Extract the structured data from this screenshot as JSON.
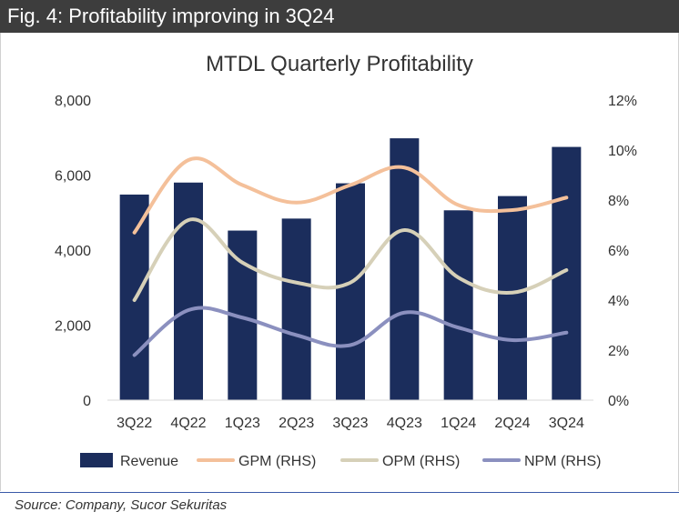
{
  "header": {
    "title": "Fig. 4: Profitability improving in 3Q24"
  },
  "source": "Source: Company, Sucor Sekuritas",
  "colors": {
    "revenue": "#1b2d5c",
    "gpm": "#f4c09a",
    "opm": "#d6d0b8",
    "npm": "#8b90bf",
    "header_bg": "#3d3d3d",
    "text": "#333333"
  },
  "chart_data": {
    "type": "bar",
    "title": "MTDL Quarterly Profitability",
    "categories": [
      "3Q22",
      "4Q22",
      "1Q23",
      "2Q23",
      "3Q23",
      "4Q23",
      "1Q24",
      "2Q24",
      "3Q24"
    ],
    "y_left": {
      "ticks": [
        "0",
        "2,000",
        "4,000",
        "6,000",
        "8,000"
      ],
      "ylim": [
        0,
        8000
      ]
    },
    "y_right": {
      "ticks": [
        "0%",
        "2%",
        "4%",
        "6%",
        "8%",
        "10%",
        "12%"
      ],
      "ylim": [
        0,
        12
      ]
    },
    "series": [
      {
        "name": "Revenue",
        "type": "bar",
        "axis": "left",
        "values": [
          5480,
          5800,
          4520,
          4840,
          5780,
          6980,
          5060,
          5440,
          6750
        ]
      },
      {
        "name": "GPM (RHS)",
        "type": "line",
        "axis": "right",
        "values": [
          6.7,
          9.6,
          8.6,
          7.9,
          8.6,
          9.3,
          7.8,
          7.6,
          8.1
        ]
      },
      {
        "name": "OPM (RHS)",
        "type": "line",
        "axis": "right",
        "values": [
          4.0,
          7.2,
          5.5,
          4.7,
          4.7,
          6.8,
          4.9,
          4.3,
          5.2
        ]
      },
      {
        "name": "NPM (RHS)",
        "type": "line",
        "axis": "right",
        "values": [
          1.8,
          3.6,
          3.3,
          2.6,
          2.2,
          3.5,
          2.9,
          2.4,
          2.7
        ]
      }
    ],
    "grid": false,
    "legend": "bottom"
  }
}
